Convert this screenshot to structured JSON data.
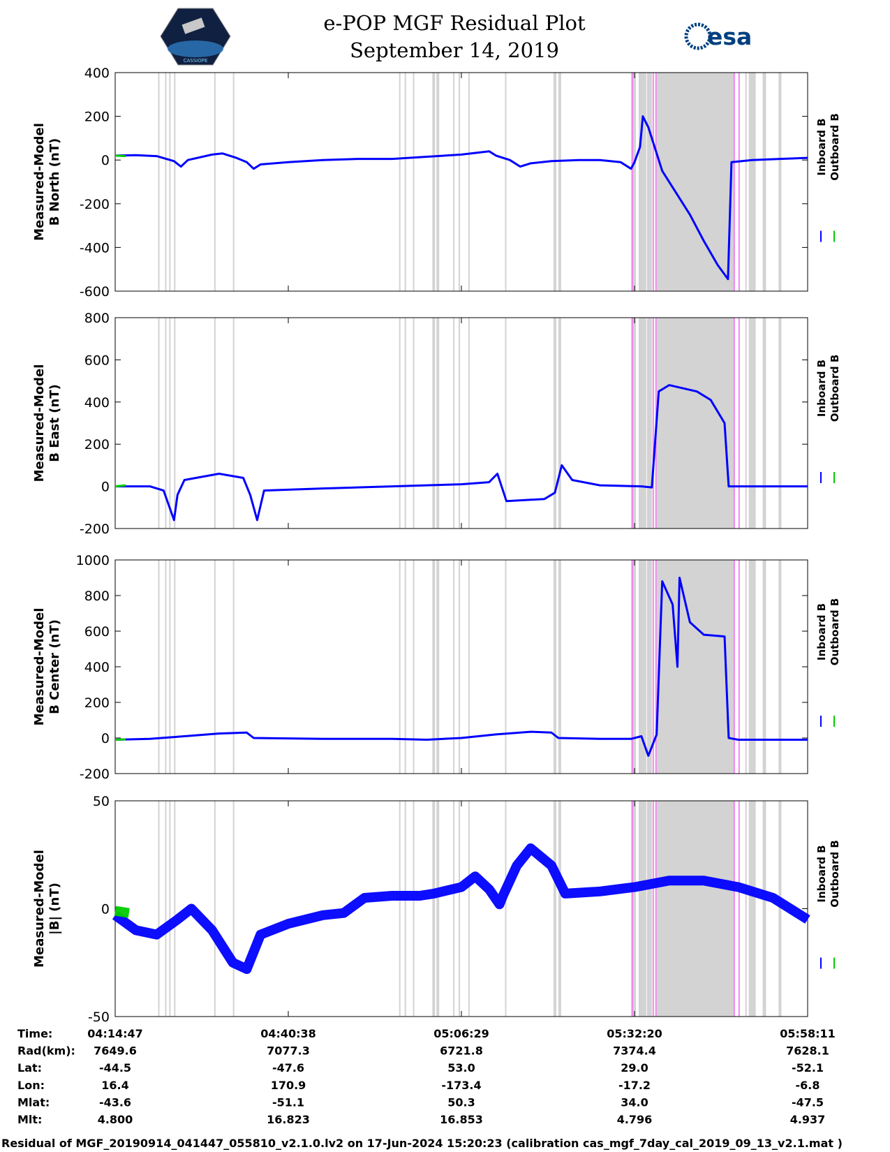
{
  "header": {
    "title_line1": "e-POP MGF Residual Plot",
    "title_line2": "September 14, 2019",
    "cassiope_logo_text": "CASSIOPE",
    "esa_logo_text": "esa"
  },
  "legend": {
    "inboard": "Inboard B",
    "outboard": "Outboard B"
  },
  "colors": {
    "inboard": "#0000ff",
    "outboard": "#00cc00",
    "gap": "#d3d3d3",
    "flag": "#ee88ee"
  },
  "chart_data": [
    {
      "type": "line",
      "ylabel_line1": "Measured-Model",
      "ylabel_line2": "B North (nT)",
      "ylim": [
        -600,
        400
      ],
      "yticks": [
        400,
        200,
        0,
        -200,
        -400,
        -600
      ],
      "series": [
        {
          "name": "Inboard B",
          "points": [
            [
              0.0,
              20
            ],
            [
              0.03,
              22
            ],
            [
              0.06,
              18
            ],
            [
              0.085,
              -5
            ],
            [
              0.095,
              -30
            ],
            [
              0.105,
              0
            ],
            [
              0.14,
              25
            ],
            [
              0.155,
              30
            ],
            [
              0.175,
              10
            ],
            [
              0.19,
              -10
            ],
            [
              0.2,
              -40
            ],
            [
              0.21,
              -20
            ],
            [
              0.25,
              -10
            ],
            [
              0.3,
              0
            ],
            [
              0.35,
              5
            ],
            [
              0.4,
              5
            ],
            [
              0.45,
              15
            ],
            [
              0.5,
              25
            ],
            [
              0.54,
              40
            ],
            [
              0.55,
              20
            ],
            [
              0.57,
              0
            ],
            [
              0.585,
              -30
            ],
            [
              0.6,
              -15
            ],
            [
              0.63,
              -5
            ],
            [
              0.67,
              0
            ],
            [
              0.7,
              0
            ],
            [
              0.73,
              -10
            ],
            [
              0.745,
              -40
            ],
            [
              0.75,
              -10
            ],
            [
              0.758,
              60
            ],
            [
              0.762,
              200
            ],
            [
              0.77,
              150
            ],
            [
              0.79,
              -50
            ],
            [
              0.81,
              -150
            ],
            [
              0.83,
              -250
            ],
            [
              0.85,
              -370
            ],
            [
              0.87,
              -480
            ],
            [
              0.885,
              -545
            ],
            [
              0.89,
              -10
            ],
            [
              0.92,
              0
            ],
            [
              0.96,
              5
            ],
            [
              1.0,
              10
            ]
          ]
        },
        {
          "name": "Outboard B",
          "points": [
            [
              0.0,
              20
            ],
            [
              0.015,
              18
            ]
          ]
        }
      ]
    },
    {
      "type": "line",
      "ylabel_line1": "Measured-Model",
      "ylabel_line2": "B East (nT)",
      "ylim": [
        -200,
        800
      ],
      "yticks": [
        800,
        600,
        400,
        200,
        0,
        -200
      ],
      "series": [
        {
          "name": "Inboard B",
          "points": [
            [
              0.0,
              0
            ],
            [
              0.05,
              0
            ],
            [
              0.07,
              -20
            ],
            [
              0.085,
              -160
            ],
            [
              0.09,
              -40
            ],
            [
              0.1,
              30
            ],
            [
              0.15,
              60
            ],
            [
              0.185,
              40
            ],
            [
              0.195,
              -40
            ],
            [
              0.205,
              -160
            ],
            [
              0.215,
              -20
            ],
            [
              0.3,
              -10
            ],
            [
              0.4,
              0
            ],
            [
              0.5,
              10
            ],
            [
              0.54,
              20
            ],
            [
              0.552,
              60
            ],
            [
              0.565,
              -70
            ],
            [
              0.62,
              -60
            ],
            [
              0.635,
              -30
            ],
            [
              0.645,
              100
            ],
            [
              0.66,
              30
            ],
            [
              0.7,
              5
            ],
            [
              0.76,
              0
            ],
            [
              0.775,
              -5
            ],
            [
              0.785,
              450
            ],
            [
              0.8,
              480
            ],
            [
              0.84,
              450
            ],
            [
              0.86,
              410
            ],
            [
              0.88,
              300
            ],
            [
              0.886,
              0
            ],
            [
              0.92,
              0
            ],
            [
              1.0,
              0
            ]
          ]
        },
        {
          "name": "Outboard B",
          "points": [
            [
              0.0,
              0
            ],
            [
              0.015,
              5
            ]
          ]
        }
      ]
    },
    {
      "type": "line",
      "ylabel_line1": "Measured-Model",
      "ylabel_line2": "B Center (nT)",
      "ylim": [
        -200,
        1000
      ],
      "yticks": [
        1000,
        800,
        600,
        400,
        200,
        0,
        -200
      ],
      "series": [
        {
          "name": "Inboard B",
          "points": [
            [
              0.0,
              -10
            ],
            [
              0.05,
              -5
            ],
            [
              0.1,
              10
            ],
            [
              0.15,
              25
            ],
            [
              0.19,
              30
            ],
            [
              0.2,
              0
            ],
            [
              0.3,
              -5
            ],
            [
              0.4,
              -5
            ],
            [
              0.45,
              -10
            ],
            [
              0.5,
              0
            ],
            [
              0.55,
              20
            ],
            [
              0.6,
              35
            ],
            [
              0.63,
              30
            ],
            [
              0.64,
              0
            ],
            [
              0.7,
              -5
            ],
            [
              0.745,
              -5
            ],
            [
              0.76,
              10
            ],
            [
              0.77,
              -100
            ],
            [
              0.782,
              20
            ],
            [
              0.79,
              880
            ],
            [
              0.805,
              750
            ],
            [
              0.812,
              400
            ],
            [
              0.815,
              900
            ],
            [
              0.83,
              650
            ],
            [
              0.85,
              580
            ],
            [
              0.88,
              570
            ],
            [
              0.886,
              0
            ],
            [
              0.9,
              -10
            ],
            [
              1.0,
              -10
            ]
          ]
        },
        {
          "name": "Outboard B",
          "points": [
            [
              0.0,
              -10
            ],
            [
              0.015,
              -8
            ]
          ]
        }
      ]
    },
    {
      "type": "line",
      "ylabel_line1": "Measured-Model",
      "ylabel_line2": "|B| (nT)",
      "ylim": [
        -50,
        50
      ],
      "yticks": [
        50,
        0,
        -50
      ],
      "series": [
        {
          "name": "Inboard B",
          "points": [
            [
              0.0,
              -3
            ],
            [
              0.03,
              -10
            ],
            [
              0.06,
              -12
            ],
            [
              0.09,
              -5
            ],
            [
              0.11,
              0
            ],
            [
              0.14,
              -10
            ],
            [
              0.17,
              -25
            ],
            [
              0.19,
              -28
            ],
            [
              0.21,
              -12
            ],
            [
              0.25,
              -7
            ],
            [
              0.3,
              -3
            ],
            [
              0.33,
              -2
            ],
            [
              0.36,
              5
            ],
            [
              0.4,
              6
            ],
            [
              0.44,
              6
            ],
            [
              0.46,
              7
            ],
            [
              0.5,
              10
            ],
            [
              0.52,
              15
            ],
            [
              0.54,
              9
            ],
            [
              0.555,
              2
            ],
            [
              0.56,
              6
            ],
            [
              0.58,
              20
            ],
            [
              0.6,
              28
            ],
            [
              0.63,
              20
            ],
            [
              0.65,
              7
            ],
            [
              0.7,
              8
            ],
            [
              0.75,
              10
            ],
            [
              0.8,
              13
            ],
            [
              0.85,
              13
            ],
            [
              0.9,
              10
            ],
            [
              0.95,
              5
            ],
            [
              1.0,
              -5
            ]
          ]
        },
        {
          "name": "Outboard B",
          "points": [
            [
              0.0,
              -1
            ],
            [
              0.02,
              -2
            ]
          ]
        }
      ]
    }
  ],
  "x_axis": {
    "ticks": [
      "04:14:47",
      "04:40:38",
      "05:06:29",
      "05:32:20",
      "05:58:11"
    ]
  },
  "table": {
    "rows": [
      {
        "label": "Time:",
        "values": [
          "04:14:47",
          "04:40:38",
          "05:06:29",
          "05:32:20",
          "05:58:11"
        ]
      },
      {
        "label": "Rad(km):",
        "values": [
          "7649.6",
          "7077.3",
          "6721.8",
          "7374.4",
          "7628.1"
        ]
      },
      {
        "label": "Lat:",
        "values": [
          "-44.5",
          "-47.6",
          "53.0",
          "29.0",
          "-52.1"
        ]
      },
      {
        "label": "Lon:",
        "values": [
          "16.4",
          "170.9",
          "-173.4",
          "-17.2",
          "-6.8"
        ]
      },
      {
        "label": "Mlat:",
        "values": [
          "-43.6",
          "-51.1",
          "50.3",
          "34.0",
          "-47.5"
        ]
      },
      {
        "label": "Mlt:",
        "values": [
          "4.800",
          "16.823",
          "16.853",
          "4.796",
          "4.937"
        ]
      }
    ]
  },
  "footer": "Residual of MGF_20190914_041447_055810_v2.1.0.lv2 on 17-Jun-2024 15:20:23 (calibration cas_mgf_7day_cal_2019_09_13_v2.1.mat )"
}
